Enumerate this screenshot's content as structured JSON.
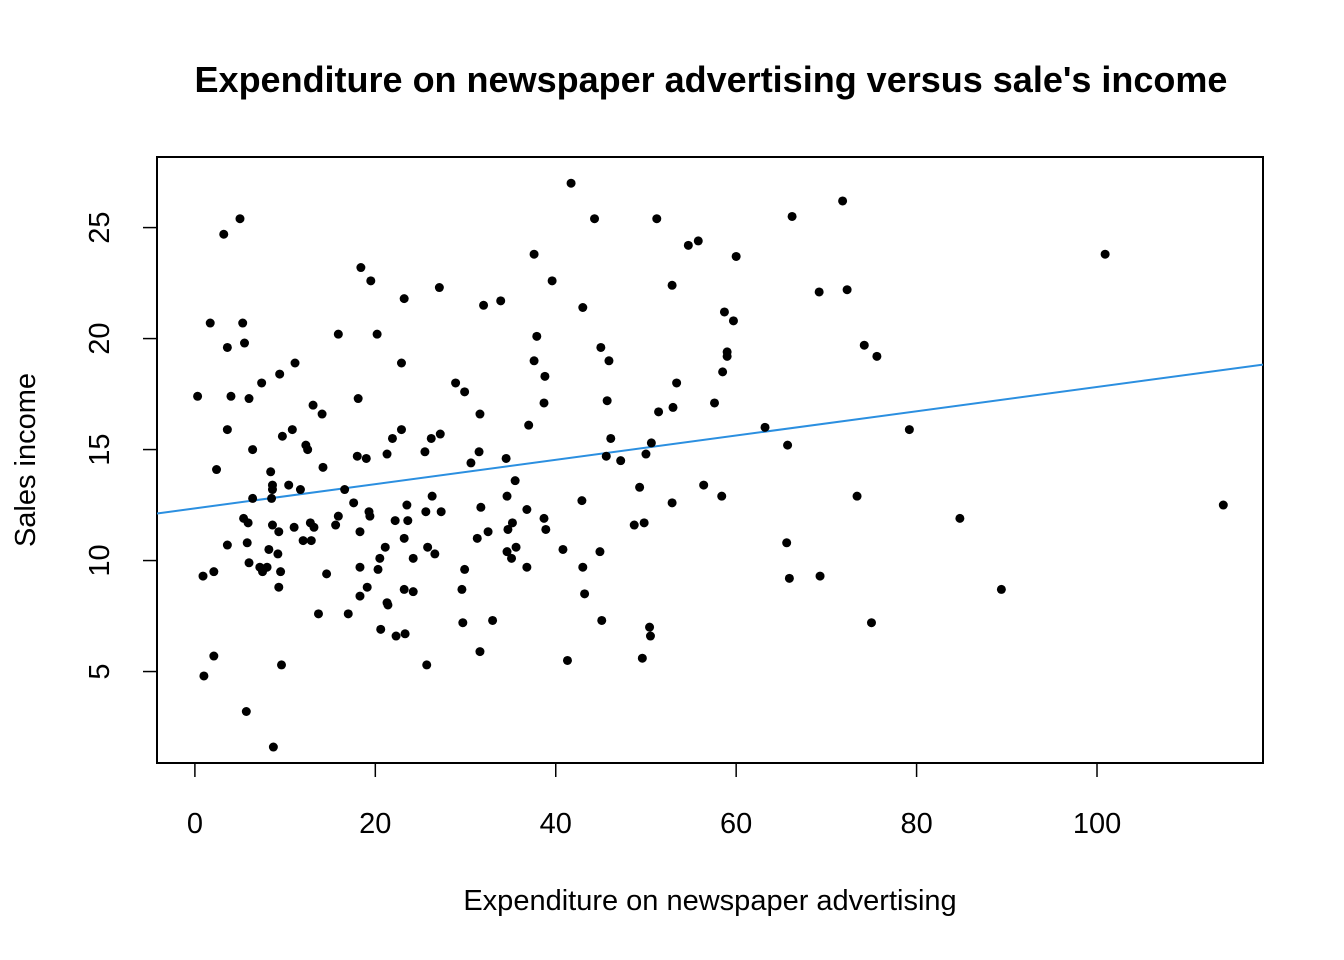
{
  "chart_data": {
    "type": "scatter",
    "title": "Expenditure on newspaper advertising versus sale's income",
    "xlabel": "Expenditure on newspaper advertising",
    "ylabel": "Sales income",
    "xlim": [
      -4.2,
      118.4
    ],
    "ylim": [
      0.88,
      28.18
    ],
    "xticks": [
      0,
      20,
      40,
      60,
      80,
      100
    ],
    "yticks": [
      5,
      10,
      15,
      20,
      25
    ],
    "grid": false,
    "legend": "none",
    "fit_line": {
      "intercept": 12.35,
      "slope": 0.0547,
      "color": "#2b8fe0"
    },
    "point_color": "#000000",
    "points": [
      [
        0.3,
        17.4
      ],
      [
        0.9,
        9.3
      ],
      [
        1.0,
        4.8
      ],
      [
        1.7,
        20.7
      ],
      [
        2.1,
        9.5
      ],
      [
        2.1,
        5.7
      ],
      [
        2.4,
        14.1
      ],
      [
        3.2,
        24.7
      ],
      [
        3.6,
        19.6
      ],
      [
        3.6,
        15.9
      ],
      [
        3.6,
        10.7
      ],
      [
        4.0,
        17.4
      ],
      [
        5.0,
        25.4
      ],
      [
        5.3,
        20.7
      ],
      [
        5.4,
        11.9
      ],
      [
        5.5,
        19.8
      ],
      [
        5.7,
        3.2
      ],
      [
        5.8,
        10.8
      ],
      [
        5.9,
        11.7
      ],
      [
        6.0,
        17.3
      ],
      [
        6.0,
        9.9
      ],
      [
        6.4,
        15.0
      ],
      [
        6.4,
        12.8
      ],
      [
        7.2,
        9.7
      ],
      [
        7.4,
        18.0
      ],
      [
        7.5,
        9.5
      ],
      [
        8.0,
        9.7
      ],
      [
        8.2,
        10.5
      ],
      [
        8.4,
        14.0
      ],
      [
        8.5,
        12.8
      ],
      [
        8.6,
        11.6
      ],
      [
        8.6,
        13.2
      ],
      [
        8.6,
        13.4
      ],
      [
        8.7,
        1.6
      ],
      [
        9.2,
        10.3
      ],
      [
        9.3,
        8.8
      ],
      [
        9.3,
        11.3
      ],
      [
        9.4,
        18.4
      ],
      [
        9.5,
        9.5
      ],
      [
        9.6,
        5.3
      ],
      [
        9.7,
        15.6
      ],
      [
        10.4,
        13.4
      ],
      [
        10.8,
        15.9
      ],
      [
        11.0,
        11.5
      ],
      [
        11.1,
        18.9
      ],
      [
        11.7,
        13.2
      ],
      [
        12.0,
        10.9
      ],
      [
        12.3,
        15.2
      ],
      [
        12.5,
        15.0
      ],
      [
        12.8,
        11.7
      ],
      [
        12.9,
        10.9
      ],
      [
        13.1,
        17.0
      ],
      [
        13.2,
        11.5
      ],
      [
        13.7,
        7.6
      ],
      [
        14.1,
        16.6
      ],
      [
        14.2,
        14.2
      ],
      [
        14.6,
        9.4
      ],
      [
        15.6,
        11.6
      ],
      [
        15.9,
        12.0
      ],
      [
        15.9,
        20.2
      ],
      [
        16.6,
        13.2
      ],
      [
        17.0,
        7.6
      ],
      [
        17.6,
        12.6
      ],
      [
        18.0,
        14.7
      ],
      [
        18.1,
        17.3
      ],
      [
        18.3,
        11.3
      ],
      [
        18.3,
        9.7
      ],
      [
        18.3,
        8.4
      ],
      [
        18.4,
        23.2
      ],
      [
        19.0,
        14.6
      ],
      [
        19.1,
        8.8
      ],
      [
        19.3,
        12.2
      ],
      [
        19.4,
        12.0
      ],
      [
        19.5,
        22.6
      ],
      [
        20.2,
        20.2
      ],
      [
        20.3,
        9.6
      ],
      [
        20.5,
        10.1
      ],
      [
        20.6,
        6.9
      ],
      [
        21.1,
        10.6
      ],
      [
        21.3,
        14.8
      ],
      [
        21.3,
        8.1
      ],
      [
        21.4,
        8.0
      ],
      [
        21.9,
        15.5
      ],
      [
        22.2,
        11.8
      ],
      [
        22.3,
        6.6
      ],
      [
        22.9,
        18.9
      ],
      [
        22.9,
        15.9
      ],
      [
        23.2,
        21.8
      ],
      [
        23.2,
        11.0
      ],
      [
        23.2,
        8.7
      ],
      [
        23.3,
        6.7
      ],
      [
        23.5,
        12.5
      ],
      [
        23.6,
        11.8
      ],
      [
        24.2,
        10.1
      ],
      [
        24.2,
        8.6
      ],
      [
        25.5,
        14.9
      ],
      [
        25.6,
        12.2
      ],
      [
        25.7,
        5.3
      ],
      [
        25.8,
        10.6
      ],
      [
        26.2,
        15.5
      ],
      [
        26.3,
        12.9
      ],
      [
        26.6,
        10.3
      ],
      [
        27.1,
        22.3
      ],
      [
        27.2,
        15.7
      ],
      [
        27.3,
        12.2
      ],
      [
        28.9,
        18.0
      ],
      [
        29.6,
        8.7
      ],
      [
        29.7,
        7.2
      ],
      [
        29.9,
        17.6
      ],
      [
        29.9,
        9.6
      ],
      [
        30.6,
        14.4
      ],
      [
        31.3,
        11.0
      ],
      [
        31.5,
        14.9
      ],
      [
        31.6,
        5.9
      ],
      [
        31.6,
        16.6
      ],
      [
        31.7,
        12.4
      ],
      [
        32.0,
        21.5
      ],
      [
        32.5,
        11.3
      ],
      [
        33.0,
        7.3
      ],
      [
        33.9,
        21.7
      ],
      [
        34.5,
        14.6
      ],
      [
        34.6,
        10.4
      ],
      [
        34.6,
        12.9
      ],
      [
        34.7,
        11.4
      ],
      [
        35.1,
        10.1
      ],
      [
        35.2,
        11.7
      ],
      [
        35.5,
        13.6
      ],
      [
        35.6,
        10.6
      ],
      [
        36.8,
        12.3
      ],
      [
        36.8,
        9.7
      ],
      [
        37.0,
        16.1
      ],
      [
        37.6,
        23.8
      ],
      [
        37.6,
        19.0
      ],
      [
        37.9,
        20.1
      ],
      [
        38.7,
        11.9
      ],
      [
        38.7,
        17.1
      ],
      [
        38.8,
        18.3
      ],
      [
        38.9,
        11.4
      ],
      [
        39.6,
        22.6
      ],
      [
        40.8,
        10.5
      ],
      [
        41.3,
        5.5
      ],
      [
        41.7,
        27.0
      ],
      [
        42.9,
        12.7
      ],
      [
        43.0,
        21.4
      ],
      [
        43.0,
        9.7
      ],
      [
        43.2,
        8.5
      ],
      [
        44.3,
        25.4
      ],
      [
        44.9,
        10.4
      ],
      [
        45.0,
        19.6
      ],
      [
        45.1,
        7.3
      ],
      [
        45.6,
        14.7
      ],
      [
        45.7,
        17.2
      ],
      [
        45.9,
        19.0
      ],
      [
        46.1,
        15.5
      ],
      [
        47.2,
        14.5
      ],
      [
        48.7,
        11.6
      ],
      [
        49.3,
        13.3
      ],
      [
        49.6,
        5.6
      ],
      [
        49.8,
        11.7
      ],
      [
        50.0,
        14.8
      ],
      [
        50.4,
        7.0
      ],
      [
        50.5,
        6.6
      ],
      [
        50.6,
        15.3
      ],
      [
        51.2,
        25.4
      ],
      [
        51.4,
        16.7
      ],
      [
        52.9,
        12.6
      ],
      [
        52.9,
        22.4
      ],
      [
        53.0,
        16.9
      ],
      [
        53.4,
        18.0
      ],
      [
        54.7,
        24.2
      ],
      [
        55.8,
        24.4
      ],
      [
        56.4,
        13.4
      ],
      [
        57.6,
        17.1
      ],
      [
        58.4,
        12.9
      ],
      [
        58.5,
        18.5
      ],
      [
        58.7,
        21.2
      ],
      [
        59.0,
        19.2
      ],
      [
        59.0,
        19.4
      ],
      [
        59.7,
        20.8
      ],
      [
        60.0,
        23.7
      ],
      [
        63.2,
        16.0
      ],
      [
        65.6,
        10.8
      ],
      [
        65.7,
        15.2
      ],
      [
        65.9,
        9.2
      ],
      [
        66.2,
        25.5
      ],
      [
        69.2,
        22.1
      ],
      [
        69.3,
        9.3
      ],
      [
        71.8,
        26.2
      ],
      [
        72.3,
        22.2
      ],
      [
        73.4,
        12.9
      ],
      [
        74.2,
        19.7
      ],
      [
        75.0,
        7.2
      ],
      [
        75.6,
        19.2
      ],
      [
        79.2,
        15.9
      ],
      [
        84.8,
        11.9
      ],
      [
        89.4,
        8.7
      ],
      [
        100.9,
        23.8
      ],
      [
        114.0,
        12.5
      ]
    ]
  }
}
